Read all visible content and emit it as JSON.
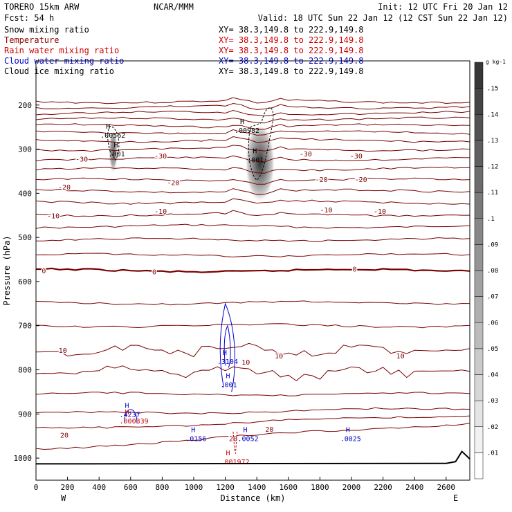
{
  "header": {
    "model": "TORERO  15km ARW",
    "org": "NCAR/MMM",
    "init": "Init: 12 UTC Fri 20 Jan 12",
    "fcst": "Fcst:   54 h",
    "valid": "Valid: 18 UTC Sun 22 Jan 12 (12 CST Sun 22 Jan 12)"
  },
  "fields": [
    {
      "label": "Snow mixing ratio",
      "color": "#000000",
      "xy": "XY=  38.3,149.8 to 222.9,149.8"
    },
    {
      "label": "Temperature",
      "color": "#8b0000",
      "xy": "XY=  38.3,149.8 to 222.9,149.8"
    },
    {
      "label": "Rain water mixing ratio",
      "color": "#cc0000",
      "xy": "XY=  38.3,149.8 to 222.9,149.8"
    },
    {
      "label": "Cloud water mixing ratio",
      "color": "#0000cc",
      "xy": "XY=  38.3,149.8 to 222.9,149.8"
    },
    {
      "label": "Cloud ice mixing ratio",
      "color": "#000000",
      "xy": "XY=  38.3,149.8 to 222.9,149.8"
    }
  ],
  "colors": {
    "temperature": "#7a0000",
    "rain": "#cc0000",
    "cloud_water": "#0000cc",
    "ice": "#000000",
    "ground": "#000000"
  },
  "chart_data": {
    "type": "contour-cross-section",
    "xlabel": "Distance (km)",
    "ylabel": "Pressure (hPa)",
    "xlim": [
      0,
      2750
    ],
    "ylim": [
      1050,
      100
    ],
    "xticks": [
      0,
      200,
      400,
      600,
      800,
      1000,
      1200,
      1400,
      1600,
      1800,
      2000,
      2200,
      2400,
      2600
    ],
    "yticks": [
      200,
      300,
      400,
      500,
      600,
      700,
      800,
      900,
      1000
    ],
    "x_end_labels": {
      "left": "W",
      "right": "E"
    },
    "colorbar": {
      "unit": "g kg-1",
      "ticks": [
        ".01",
        ".02",
        ".03",
        ".04",
        ".05",
        ".06",
        ".07",
        ".08",
        ".09",
        ".1",
        ".11",
        ".12",
        ".13",
        ".14",
        ".15"
      ]
    },
    "isotherm_labels": [
      {
        "text": "-30",
        "x": 290,
        "p": 322
      },
      {
        "text": "-30",
        "x": 790,
        "p": 315
      },
      {
        "text": "-30",
        "x": 1710,
        "p": 310
      },
      {
        "text": "-30",
        "x": 2030,
        "p": 315
      },
      {
        "text": "-20",
        "x": 180,
        "p": 385
      },
      {
        "text": "-20",
        "x": 870,
        "p": 375
      },
      {
        "text": "-20",
        "x": 1810,
        "p": 368
      },
      {
        "text": "-20",
        "x": 2060,
        "p": 368
      },
      {
        "text": "-10",
        "x": 110,
        "p": 450
      },
      {
        "text": "-10",
        "x": 790,
        "p": 440
      },
      {
        "text": "-10",
        "x": 1840,
        "p": 437
      },
      {
        "text": "-10",
        "x": 2180,
        "p": 440
      },
      {
        "text": "0",
        "x": 50,
        "p": 575
      },
      {
        "text": "0",
        "x": 750,
        "p": 577
      },
      {
        "text": "0",
        "x": 2020,
        "p": 571
      },
      {
        "text": "10",
        "x": 170,
        "p": 755
      },
      {
        "text": "10",
        "x": 1330,
        "p": 782
      },
      {
        "text": "10",
        "x": 1540,
        "p": 768
      },
      {
        "text": "10",
        "x": 2310,
        "p": 768
      },
      {
        "text": "20",
        "x": 180,
        "p": 947
      },
      {
        "text": "20",
        "x": 1250,
        "p": 955
      },
      {
        "text": "20",
        "x": 1480,
        "p": 934
      }
    ],
    "maxima_labels": [
      {
        "text": ".00562",
        "x": 470,
        "p": 268,
        "color": "#000000"
      },
      {
        "text": ".001",
        "x": 520,
        "p": 310,
        "color": "#000000"
      },
      {
        "text": ".00982",
        "x": 1320,
        "p": 257,
        "color": "#000000"
      },
      {
        "text": ".001",
        "x": 1400,
        "p": 323,
        "color": "#000000"
      },
      {
        "text": ".3104",
        "x": 1210,
        "p": 780,
        "color": "#0000cc"
      },
      {
        "text": ".001",
        "x": 1230,
        "p": 833,
        "color": "#0000cc"
      },
      {
        "text": ".4237",
        "x": 590,
        "p": 900,
        "color": "#0000cc"
      },
      {
        "text": ".000339",
        "x": 590,
        "p": 915,
        "color": "#cc0000"
      },
      {
        "text": ".0156",
        "x": 1010,
        "p": 955,
        "color": "#0000cc"
      },
      {
        "text": ".0052",
        "x": 1340,
        "p": 955,
        "color": "#0000cc"
      },
      {
        "text": ".0025",
        "x": 1990,
        "p": 955,
        "color": "#0000cc"
      },
      {
        "text": ".001972",
        "x": 1230,
        "p": 1008,
        "color": "#cc0000"
      }
    ]
  }
}
